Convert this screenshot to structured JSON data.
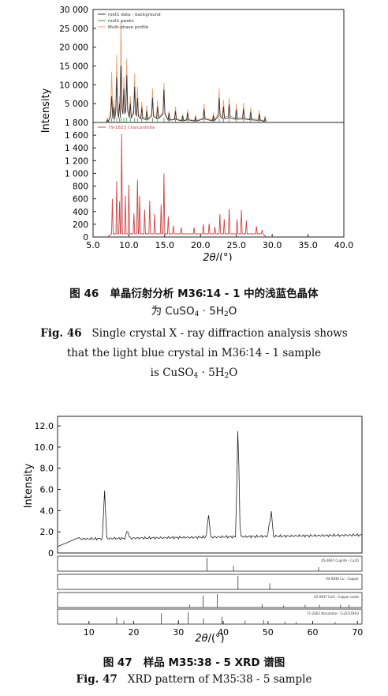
{
  "fig46": {
    "ylabel": "Intensity",
    "xlabel_prefix": "2θ",
    "xlabel_suffix": "/(°)",
    "top_ticks": [
      "30 000",
      "25 000",
      "20 000",
      "15 000",
      "10 000",
      "5 000",
      "0"
    ],
    "bottom_ticks": [
      "1 800",
      "1 600",
      "1 400",
      "1 200",
      "1 000",
      "800",
      "600",
      "400",
      "200",
      "0"
    ],
    "x_ticks": [
      "5.0",
      "10.0",
      "15.0",
      "20.0",
      "25.0",
      "30.0",
      "35.0",
      "40.0"
    ],
    "legend": [
      "root1 data - background",
      "root1 peaks",
      "Multi-phase profile"
    ],
    "ref_label": "79-1823 Chalcanthite",
    "caption_cn_num": "图 46",
    "caption_cn_line1": "单晶衍射分析 M36∶14 - 1 中的浅蓝色晶体",
    "caption_cn_line2_pre": "为 CuSO",
    "caption_cn_line2_sub": "4",
    "caption_cn_line2_mid": " · 5H",
    "caption_cn_line2_sub2": "2",
    "caption_cn_line2_post": "O",
    "caption_en_num": "Fig. 46",
    "caption_en_line1": "Single crystal X - ray diffraction analysis shows",
    "caption_en_line2": "that the light blue crystal in M36∶14 - 1 sample",
    "caption_en_line3_pre": "is CuSO",
    "caption_en_line3_sub": "4",
    "caption_en_line3_mid": " · 5H",
    "caption_en_line3_sub2": "2",
    "caption_en_line3_post": "O"
  },
  "fig47": {
    "ylabel": "Intensity",
    "xlabel_prefix": "2θ",
    "xlabel_suffix": "/(°)",
    "y_ticks": [
      "12.0",
      "10.0",
      "8.0",
      "6.0",
      "4.0",
      "2.0",
      "0"
    ],
    "x_ticks": [
      "10",
      "20",
      "30",
      "40",
      "50",
      "60",
      "70"
    ],
    "ref_labels": [
      "05-0667 Cuprite - Cu2O",
      "04-0836 Cu - Copper",
      "45-0937 CuO - Copper oxide",
      "71-2363 Atacamite - Cu2Cl(OH)3"
    ],
    "caption_cn_num": "图 47",
    "caption_cn_text": "样品 M35∶38 - 5 XRD 谱图",
    "caption_en_num": "Fig. 47",
    "caption_en_text": "XRD pattern of M35∶38 - 5 sample"
  },
  "chart_data": [
    {
      "type": "line",
      "panel": "top",
      "series": [
        {
          "name": "root1 data - background",
          "color": "#333333",
          "x": [
            7.0,
            7.6,
            7.9,
            8.3,
            8.7,
            8.9,
            9.3,
            9.7,
            10.2,
            10.8,
            11.2,
            11.8,
            12.5,
            13.3,
            14.0,
            14.9,
            15.6,
            16.5,
            17.5,
            18.2,
            19.3,
            20.5,
            21.8,
            22.6,
            23.2,
            24.0,
            25.0,
            26.0,
            27.0,
            28.2,
            29.0
          ],
          "y": [
            800,
            7000,
            4000,
            12000,
            5000,
            15000,
            9000,
            12500,
            5000,
            9500,
            6500,
            4000,
            3000,
            6500,
            4200,
            8800,
            2500,
            3000,
            1800,
            2600,
            1500,
            3500,
            1800,
            6500,
            4200,
            4800,
            3400,
            3600,
            2800,
            2200,
            1200
          ]
        },
        {
          "name": "Multi-phase profile",
          "color": "#e8a07a",
          "x": [
            7.0,
            7.6,
            7.9,
            8.3,
            8.7,
            8.9,
            9.3,
            9.7,
            10.2,
            10.8,
            11.2,
            11.8,
            12.5,
            13.3,
            14.0,
            14.9,
            15.6,
            16.5,
            17.5,
            18.2,
            19.3,
            20.5,
            21.8,
            22.6,
            23.2,
            24.0,
            25.0,
            26.0,
            27.0,
            28.2,
            29.0
          ],
          "y": [
            600,
            13500,
            6000,
            18000,
            7000,
            27000,
            12000,
            17000,
            7000,
            13000,
            9500,
            5500,
            4500,
            9000,
            6000,
            10500,
            3000,
            4200,
            2200,
            3500,
            2000,
            5000,
            2600,
            9000,
            6000,
            6500,
            5000,
            5200,
            4000,
            3200,
            1800
          ]
        }
      ],
      "xlim": [
        5,
        40
      ],
      "ylim": [
        0,
        30000
      ]
    },
    {
      "type": "bar",
      "panel": "bottom",
      "series": [
        {
          "name": "79-1823 Chalcanthite",
          "color": "#cc4444",
          "x": [
            7.7,
            8.3,
            8.7,
            9.0,
            9.5,
            10.0,
            10.7,
            11.2,
            11.5,
            12.2,
            12.9,
            13.6,
            14.5,
            14.9,
            15.5,
            16.2,
            17.3,
            19.1,
            20.4,
            21.2,
            22.0,
            22.7,
            23.3,
            24.0,
            25.1,
            25.7,
            26.4,
            27.8,
            28.6
          ],
          "y": [
            600,
            880,
            560,
            1620,
            650,
            820,
            370,
            900,
            650,
            430,
            570,
            360,
            510,
            1000,
            320,
            180,
            150,
            150,
            200,
            210,
            160,
            360,
            280,
            440,
            280,
            420,
            260,
            170,
            110
          ]
        }
      ],
      "xlim": [
        5,
        40
      ],
      "ylim": [
        0,
        1800
      ]
    },
    {
      "type": "line",
      "panel": "fig47-main",
      "series": [
        {
          "name": "",
          "color": "#222222",
          "x": [
            3,
            10,
            13,
            13.5,
            14,
            17,
            18.3,
            18.6,
            20,
            30,
            36,
            36.7,
            37.5,
            40,
            42.5,
            43.3,
            43.6,
            44.2,
            47,
            50,
            50.4,
            50.7,
            51.5,
            55,
            60,
            65,
            70,
            71
          ],
          "y": [
            1.3,
            1.6,
            2.0,
            5.9,
            1.8,
            1.7,
            1.6,
            2.2,
            1.6,
            1.7,
            1.8,
            3.8,
            1.8,
            1.9,
            2.0,
            12.6,
            2.2,
            1.9,
            1.8,
            1.9,
            3.0,
            4.2,
            1.8,
            1.7,
            1.7,
            1.6,
            1.6,
            1.6
          ]
        }
      ],
      "xlim": [
        3,
        71
      ],
      "ylim": [
        0,
        12.5
      ]
    }
  ]
}
